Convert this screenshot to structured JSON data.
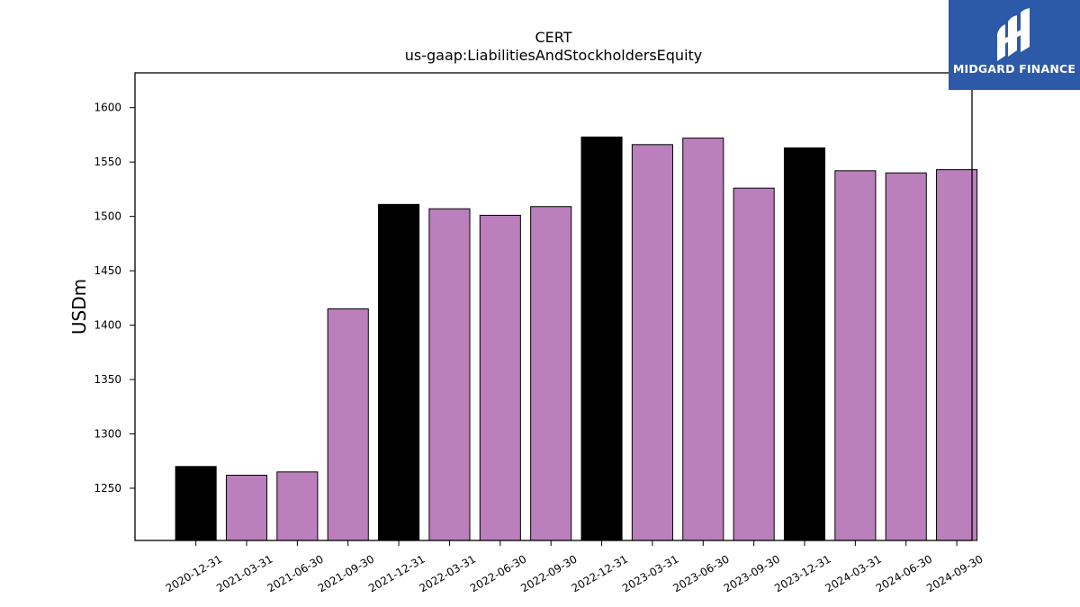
{
  "brand": {
    "name": "MIDGARD FINANCE",
    "color": "#2c5aa8",
    "icon": "midgard-logo-icon"
  },
  "chart_data": {
    "type": "bar",
    "title": "CERT",
    "subtitle": "us-gaap:LiabilitiesAndStockholdersEquity",
    "ylabel": "USDm",
    "xlabel": "",
    "ylim": [
      1202,
      1632
    ],
    "yticks": [
      1250,
      1300,
      1350,
      1400,
      1450,
      1500,
      1550,
      1600
    ],
    "grid": false,
    "colors": {
      "year_end": "#000000",
      "quarter": "#bb7fbc",
      "edge": "#000000"
    },
    "categories": [
      "2020-12-31",
      "2021-03-31",
      "2021-06-30",
      "2021-09-30",
      "2021-12-31",
      "2022-03-31",
      "2022-06-30",
      "2022-09-30",
      "2022-12-31",
      "2023-03-31",
      "2023-06-30",
      "2023-09-30",
      "2023-12-31",
      "2024-03-31",
      "2024-06-30",
      "2024-09-30"
    ],
    "values": [
      1270,
      1262,
      1265,
      1415,
      1511,
      1507,
      1501,
      1509,
      1573,
      1566,
      1572,
      1526,
      1563,
      1542,
      1540,
      1543
    ],
    "year_end": [
      true,
      false,
      false,
      false,
      true,
      false,
      false,
      false,
      true,
      false,
      false,
      false,
      true,
      false,
      false,
      false
    ]
  }
}
